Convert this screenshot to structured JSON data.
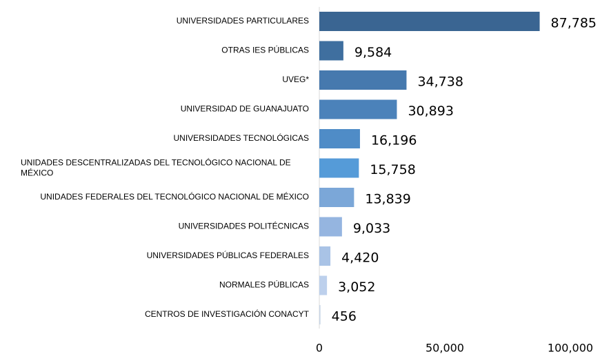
{
  "chart_data": {
    "type": "bar",
    "orientation": "horizontal",
    "categories": [
      "UNIVERSIDADES PARTICULARES",
      "OTRAS IES PÚBLICAS",
      "UVEG*",
      "UNIVERSIDAD DE GUANAJUATO",
      "UNIVERSIDADES TECNOLÓGICAS",
      "UNIDADES DESCENTRALIZADAS DEL TECNOLÓGICO NACIONAL DE MÉXICO",
      "UNIDADES FEDERALES DEL TECNOLÓGICO NACIONAL DE MÉXICO",
      "UNIVERSIDADES POLITÉCNICAS",
      "UNIVERSIDADES PÚBLICAS FEDERALES",
      "NORMALES PÚBLICAS",
      "CENTROS DE INVESTIGACIÓN CONACYT"
    ],
    "values": [
      87785,
      9584,
      34738,
      30893,
      16196,
      15758,
      13839,
      9033,
      4420,
      3052,
      456
    ],
    "value_labels": [
      "87,785",
      "9,584",
      "34,738",
      "30,893",
      "16,196",
      "15,758",
      "13,839",
      "9,033",
      "4,420",
      "3,052",
      "456"
    ],
    "colors": [
      "#3a6592",
      "#3f6f9f",
      "#4679ae",
      "#4b82ba",
      "#4f8cc7",
      "#559bd8",
      "#7ba7d8",
      "#95b5e0",
      "#a9c3e6",
      "#bdd0ec",
      "#c9d6e6"
    ],
    "xlim": [
      0,
      100000
    ],
    "xticks": [
      0,
      {
        "value": 50000,
        "label": "50,000"
      },
      {
        "value": 100000,
        "label": "100,000"
      }
    ]
  }
}
